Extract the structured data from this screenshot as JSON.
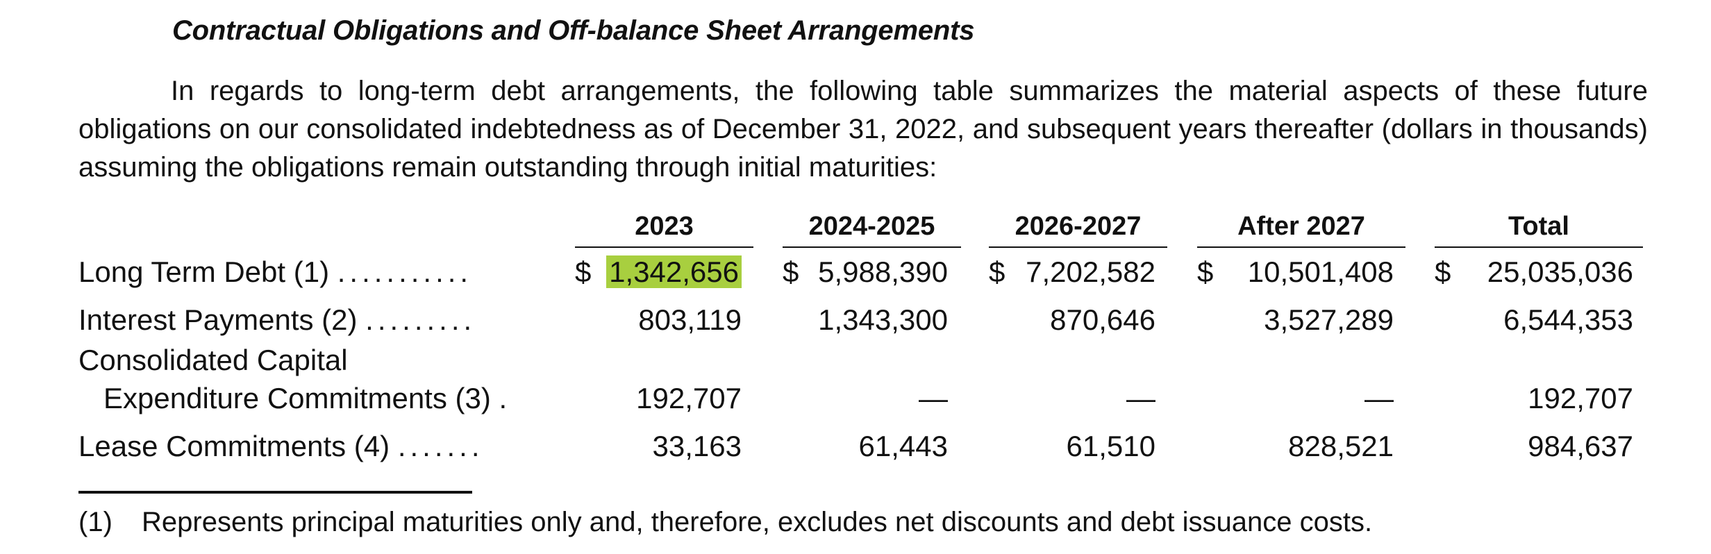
{
  "heading": "Contractual Obligations and Off-balance Sheet Arrangements",
  "paragraph": "In regards to long-term debt arrangements, the following table summarizes the material aspects of these future obligations on our consolidated indebtedness as of December 31, 2022, and subsequent years thereafter (dollars in thousands) assuming the obligations remain outstanding through initial maturities:",
  "table": {
    "columns": [
      "2023",
      "2024-2025",
      "2026-2027",
      "After 2027",
      "Total"
    ],
    "currency_symbol": "$",
    "rows": [
      {
        "label": "Long Term Debt (1)",
        "dots": "...........",
        "values": [
          "1,342,656",
          "5,988,390",
          "7,202,582",
          "10,501,408",
          "25,035,036"
        ]
      },
      {
        "label": "Interest Payments (2)",
        "dots": ".........",
        "values": [
          "803,119",
          "1,343,300",
          "870,646",
          "3,527,289",
          "6,544,353"
        ]
      },
      {
        "label_line1": "Consolidated Capital",
        "label": "Expenditure Commitments (3)",
        "dots": ".",
        "values": [
          "192,707",
          "—",
          "—",
          "—",
          "192,707"
        ]
      },
      {
        "label": "Lease Commitments (4)",
        "dots": ".......",
        "values": [
          "33,163",
          "61,443",
          "61,510",
          "828,521",
          "984,637"
        ]
      }
    ],
    "highlight_color": "#a8cf3f"
  },
  "footnotes": [
    {
      "number": "(1)",
      "text": "Represents principal maturities only and, therefore, excludes net discounts and debt issuance costs."
    }
  ]
}
